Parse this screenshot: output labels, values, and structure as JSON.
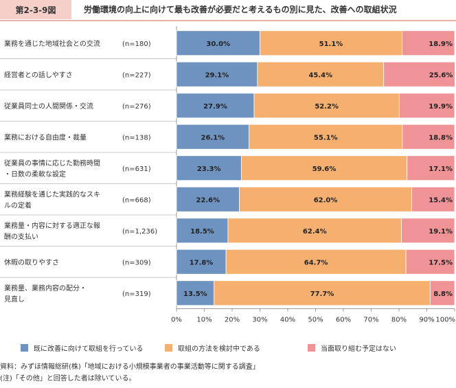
{
  "figure": {
    "number": "第2-3-9図",
    "title": "労働環境の向上に向けて最も改善が必要だと考えるもの別に見た、改善への取組状況"
  },
  "colors": {
    "series": [
      "#6f93c1",
      "#f5b06f",
      "#f09396"
    ],
    "grid": "#cccccc",
    "separator": "#c8c8c8",
    "header_tag": "#f6cfc8"
  },
  "chart_data": {
    "type": "bar",
    "orientation": "horizontal",
    "stacked": true,
    "categories": [
      [
        "業務を通じた地域社会との交流"
      ],
      [
        "経営者との話しやすさ"
      ],
      [
        "従業員同士の人間関係・交流"
      ],
      [
        "業務における自由度・裁量"
      ],
      [
        "従業員の事情に応じた勤務時間",
        "・日数の柔軟な設定"
      ],
      [
        "業務経験を通じた実践的なスキ",
        "ルの定着"
      ],
      [
        "業務量・内容に対する適正な報",
        "酬の支払い"
      ],
      [
        "休暇の取りやすさ"
      ],
      [
        "業務量、業務内容の配分・",
        "見直し"
      ]
    ],
    "n_labels": [
      "(n=180)",
      "(n=227)",
      "(n=276)",
      "(n=138)",
      "(n=631)",
      "(n=668)",
      "(n=1,236)",
      "(n=309)",
      "(n=319)"
    ],
    "series": [
      {
        "name": "既に改善に向けて取組を行っている",
        "values": [
          30.0,
          29.1,
          27.9,
          26.1,
          23.3,
          22.6,
          18.5,
          17.8,
          13.5
        ]
      },
      {
        "name": "取組の方法を検討中である",
        "values": [
          51.1,
          45.4,
          52.2,
          55.1,
          59.6,
          62.0,
          62.4,
          64.7,
          77.7
        ]
      },
      {
        "name": "当面取り組む予定はない",
        "values": [
          18.9,
          25.6,
          19.9,
          18.8,
          17.1,
          15.4,
          19.1,
          17.5,
          8.8
        ]
      }
    ],
    "x_ticks": [
      "0%",
      "10%",
      "20%",
      "30%",
      "40%",
      "50%",
      "60%",
      "70%",
      "80%",
      "90%",
      "100%"
    ],
    "xlim": [
      0,
      100
    ],
    "legend_position": "bottom",
    "grid": false
  },
  "notes": {
    "source": "資料：みずほ情報総研(株)「地域における小規模事業者の事業活動等に関する調査」",
    "note": "(注)「その他」と回答した者は除いている。"
  }
}
